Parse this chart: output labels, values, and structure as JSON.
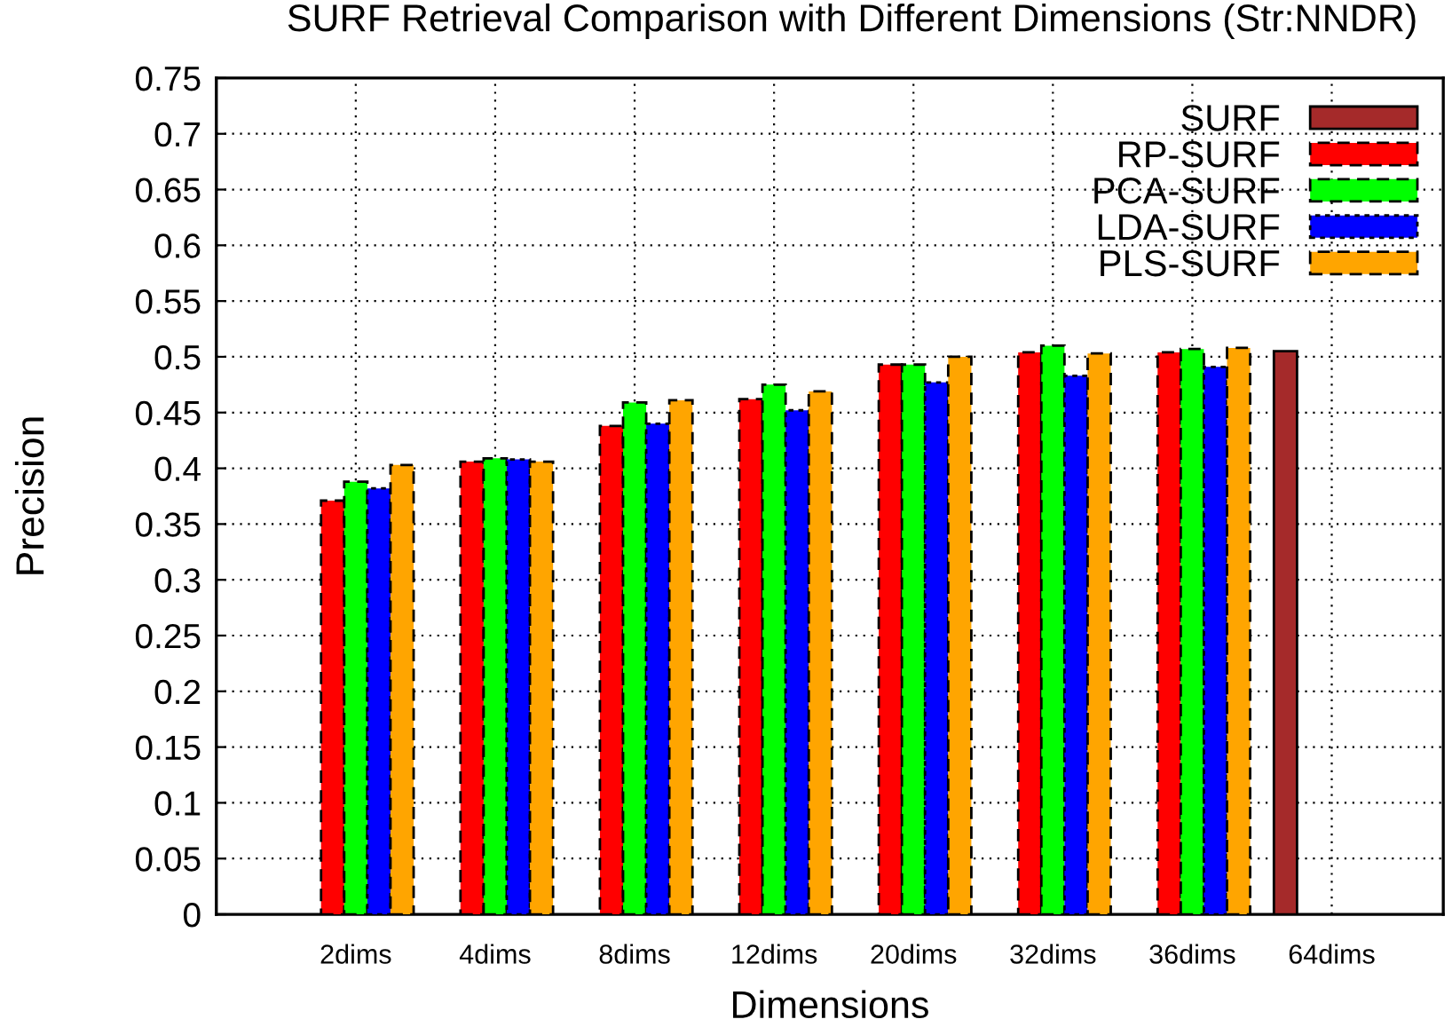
{
  "chart_data": {
    "type": "bar",
    "title": "SURF Retrieval Comparison with Different Dimensions (Str:NNDR)",
    "xlabel": "Dimensions",
    "ylabel": "Precision",
    "categories": [
      "2dims",
      "4dims",
      "8dims",
      "12dims",
      "20dims",
      "32dims",
      "36dims",
      "64dims"
    ],
    "series": [
      {
        "name": "SURF",
        "color": "#a52a2a",
        "line_style": "solid",
        "values": [
          null,
          null,
          null,
          null,
          null,
          null,
          null,
          0.505
        ]
      },
      {
        "name": "RP-SURF",
        "color": "#ff0000",
        "line_style": "dashed",
        "values": [
          0.371,
          0.406,
          0.438,
          0.462,
          0.493,
          0.504,
          0.504,
          null
        ]
      },
      {
        "name": "PCA-SURF",
        "color": "#00ff00",
        "line_style": "dashed",
        "values": [
          0.388,
          0.409,
          0.459,
          0.475,
          0.493,
          0.51,
          0.507,
          null
        ]
      },
      {
        "name": "LDA-SURF",
        "color": "#0000ff",
        "line_style": "dotted",
        "values": [
          0.382,
          0.408,
          0.44,
          0.452,
          0.477,
          0.483,
          0.491,
          null
        ]
      },
      {
        "name": "PLS-SURF",
        "color": "#ffa500",
        "line_style": "dashed",
        "values": [
          0.403,
          0.406,
          0.461,
          0.469,
          0.5,
          0.503,
          0.508,
          null
        ]
      }
    ],
    "ylim": [
      0,
      0.75
    ],
    "yticks": [
      0,
      0.05,
      0.1,
      0.15,
      0.2,
      0.25,
      0.3,
      0.35,
      0.4,
      0.45,
      0.5,
      0.55,
      0.6,
      0.65,
      0.7,
      0.75
    ],
    "grid": true,
    "legend": "top right"
  }
}
